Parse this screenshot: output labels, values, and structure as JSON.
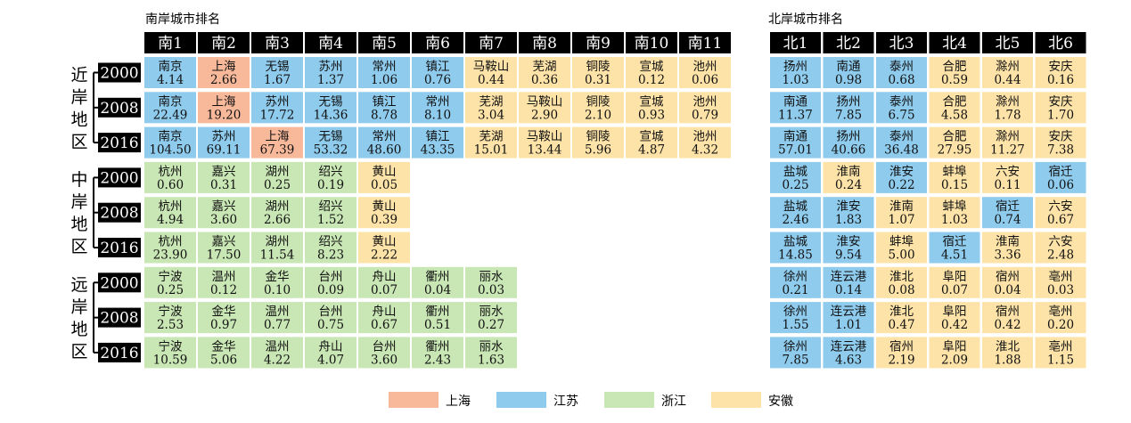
{
  "chart_data": {
    "type": "table",
    "south_title": "南岸城市排名",
    "north_title": "北岸城市排名",
    "south_headers": [
      "南1",
      "南2",
      "南3",
      "南4",
      "南5",
      "南6",
      "南7",
      "南8",
      "南9",
      "南10",
      "南11"
    ],
    "north_headers": [
      "北1",
      "北2",
      "北3",
      "北4",
      "北5",
      "北6"
    ],
    "regions": [
      "近岸地区",
      "中岸地区",
      "远岸地区"
    ],
    "legend": [
      {
        "province": "上海",
        "color": "#f8b99b"
      },
      {
        "province": "江苏",
        "color": "#8ecbed"
      },
      {
        "province": "浙江",
        "color": "#c9e6b5"
      },
      {
        "province": "安徽",
        "color": "#fde3a8"
      }
    ],
    "rows": [
      {
        "region": "近岸地区",
        "year": "2000",
        "south": [
          [
            "南京",
            "4.14",
            "江苏"
          ],
          [
            "上海",
            "2.66",
            "上海"
          ],
          [
            "无锡",
            "1.67",
            "江苏"
          ],
          [
            "苏州",
            "1.37",
            "江苏"
          ],
          [
            "常州",
            "1.06",
            "江苏"
          ],
          [
            "镇江",
            "0.76",
            "江苏"
          ],
          [
            "马鞍山",
            "0.44",
            "安徽"
          ],
          [
            "芜湖",
            "0.36",
            "安徽"
          ],
          [
            "铜陵",
            "0.31",
            "安徽"
          ],
          [
            "宣城",
            "0.12",
            "安徽"
          ],
          [
            "池州",
            "0.06",
            "安徽"
          ]
        ],
        "north": [
          [
            "扬州",
            "1.03",
            "江苏"
          ],
          [
            "南通",
            "0.98",
            "江苏"
          ],
          [
            "泰州",
            "0.68",
            "江苏"
          ],
          [
            "合肥",
            "0.59",
            "安徽"
          ],
          [
            "滁州",
            "0.44",
            "安徽"
          ],
          [
            "安庆",
            "0.16",
            "安徽"
          ]
        ]
      },
      {
        "region": "近岸地区",
        "year": "2008",
        "south": [
          [
            "南京",
            "22.49",
            "江苏"
          ],
          [
            "上海",
            "19.20",
            "上海"
          ],
          [
            "苏州",
            "17.72",
            "江苏"
          ],
          [
            "无锡",
            "14.36",
            "江苏"
          ],
          [
            "镇江",
            "8.78",
            "江苏"
          ],
          [
            "常州",
            "8.10",
            "江苏"
          ],
          [
            "芜湖",
            "3.04",
            "安徽"
          ],
          [
            "马鞍山",
            "2.90",
            "安徽"
          ],
          [
            "铜陵",
            "2.10",
            "安徽"
          ],
          [
            "宣城",
            "0.93",
            "安徽"
          ],
          [
            "池州",
            "0.79",
            "安徽"
          ]
        ],
        "north": [
          [
            "南通",
            "11.37",
            "江苏"
          ],
          [
            "扬州",
            "7.85",
            "江苏"
          ],
          [
            "泰州",
            "6.75",
            "江苏"
          ],
          [
            "合肥",
            "4.58",
            "安徽"
          ],
          [
            "滁州",
            "1.78",
            "安徽"
          ],
          [
            "安庆",
            "1.70",
            "安徽"
          ]
        ]
      },
      {
        "region": "近岸地区",
        "year": "2016",
        "south": [
          [
            "南京",
            "104.50",
            "江苏"
          ],
          [
            "苏州",
            "69.11",
            "江苏"
          ],
          [
            "上海",
            "67.39",
            "上海"
          ],
          [
            "无锡",
            "53.32",
            "江苏"
          ],
          [
            "常州",
            "48.60",
            "江苏"
          ],
          [
            "镇江",
            "43.35",
            "江苏"
          ],
          [
            "芜湖",
            "15.01",
            "安徽"
          ],
          [
            "马鞍山",
            "13.44",
            "安徽"
          ],
          [
            "铜陵",
            "5.96",
            "安徽"
          ],
          [
            "宣城",
            "4.87",
            "安徽"
          ],
          [
            "池州",
            "4.32",
            "安徽"
          ]
        ],
        "north": [
          [
            "南通",
            "57.01",
            "江苏"
          ],
          [
            "扬州",
            "40.66",
            "江苏"
          ],
          [
            "泰州",
            "36.48",
            "江苏"
          ],
          [
            "合肥",
            "27.95",
            "安徽"
          ],
          [
            "滁州",
            "11.27",
            "安徽"
          ],
          [
            "安庆",
            "7.38",
            "安徽"
          ]
        ]
      },
      {
        "region": "中岸地区",
        "year": "2000",
        "south": [
          [
            "杭州",
            "0.60",
            "浙江"
          ],
          [
            "嘉兴",
            "0.31",
            "浙江"
          ],
          [
            "湖州",
            "0.25",
            "浙江"
          ],
          [
            "绍兴",
            "0.19",
            "浙江"
          ],
          [
            "黄山",
            "0.05",
            "安徽"
          ]
        ],
        "north": [
          [
            "盐城",
            "0.25",
            "江苏"
          ],
          [
            "淮南",
            "0.24",
            "安徽"
          ],
          [
            "淮安",
            "0.22",
            "江苏"
          ],
          [
            "蚌埠",
            "0.15",
            "安徽"
          ],
          [
            "六安",
            "0.11",
            "安徽"
          ],
          [
            "宿迁",
            "0.06",
            "江苏"
          ]
        ]
      },
      {
        "region": "中岸地区",
        "year": "2008",
        "south": [
          [
            "杭州",
            "4.94",
            "浙江"
          ],
          [
            "嘉兴",
            "3.60",
            "浙江"
          ],
          [
            "湖州",
            "2.66",
            "浙江"
          ],
          [
            "绍兴",
            "1.52",
            "浙江"
          ],
          [
            "黄山",
            "0.39",
            "安徽"
          ]
        ],
        "north": [
          [
            "盐城",
            "2.46",
            "江苏"
          ],
          [
            "淮安",
            "1.83",
            "江苏"
          ],
          [
            "淮南",
            "1.07",
            "安徽"
          ],
          [
            "蚌埠",
            "1.03",
            "安徽"
          ],
          [
            "宿迁",
            "0.74",
            "江苏"
          ],
          [
            "六安",
            "0.67",
            "安徽"
          ]
        ]
      },
      {
        "region": "中岸地区",
        "year": "2016",
        "south": [
          [
            "杭州",
            "23.90",
            "浙江"
          ],
          [
            "嘉兴",
            "17.50",
            "浙江"
          ],
          [
            "湖州",
            "11.54",
            "浙江"
          ],
          [
            "绍兴",
            "8.23",
            "浙江"
          ],
          [
            "黄山",
            "2.22",
            "安徽"
          ]
        ],
        "north": [
          [
            "盐城",
            "14.85",
            "江苏"
          ],
          [
            "淮安",
            "9.54",
            "江苏"
          ],
          [
            "蚌埠",
            "5.00",
            "安徽"
          ],
          [
            "宿迁",
            "4.51",
            "江苏"
          ],
          [
            "淮南",
            "3.36",
            "安徽"
          ],
          [
            "六安",
            "2.48",
            "安徽"
          ]
        ]
      },
      {
        "region": "远岸地区",
        "year": "2000",
        "south": [
          [
            "宁波",
            "0.25",
            "浙江"
          ],
          [
            "温州",
            "0.12",
            "浙江"
          ],
          [
            "金华",
            "0.10",
            "浙江"
          ],
          [
            "台州",
            "0.09",
            "浙江"
          ],
          [
            "舟山",
            "0.07",
            "浙江"
          ],
          [
            "衢州",
            "0.04",
            "浙江"
          ],
          [
            "丽水",
            "0.03",
            "浙江"
          ]
        ],
        "north": [
          [
            "徐州",
            "0.21",
            "江苏"
          ],
          [
            "连云港",
            "0.14",
            "江苏"
          ],
          [
            "淮北",
            "0.08",
            "安徽"
          ],
          [
            "阜阳",
            "0.07",
            "安徽"
          ],
          [
            "宿州",
            "0.04",
            "安徽"
          ],
          [
            "亳州",
            "0.03",
            "安徽"
          ]
        ]
      },
      {
        "region": "远岸地区",
        "year": "2008",
        "south": [
          [
            "宁波",
            "2.53",
            "浙江"
          ],
          [
            "金华",
            "0.97",
            "浙江"
          ],
          [
            "温州",
            "0.77",
            "浙江"
          ],
          [
            "台州",
            "0.75",
            "浙江"
          ],
          [
            "舟山",
            "0.67",
            "浙江"
          ],
          [
            "衢州",
            "0.51",
            "浙江"
          ],
          [
            "丽水",
            "0.27",
            "浙江"
          ]
        ],
        "north": [
          [
            "徐州",
            "1.55",
            "江苏"
          ],
          [
            "连云港",
            "1.01",
            "江苏"
          ],
          [
            "淮北",
            "0.47",
            "安徽"
          ],
          [
            "阜阳",
            "0.42",
            "安徽"
          ],
          [
            "宿州",
            "0.42",
            "安徽"
          ],
          [
            "亳州",
            "0.20",
            "安徽"
          ]
        ]
      },
      {
        "region": "远岸地区",
        "year": "2016",
        "south": [
          [
            "宁波",
            "10.59",
            "浙江"
          ],
          [
            "金华",
            "5.06",
            "浙江"
          ],
          [
            "温州",
            "4.22",
            "浙江"
          ],
          [
            "舟山",
            "4.07",
            "浙江"
          ],
          [
            "台州",
            "3.60",
            "浙江"
          ],
          [
            "衢州",
            "2.43",
            "浙江"
          ],
          [
            "丽水",
            "1.63",
            "浙江"
          ]
        ],
        "north": [
          [
            "徐州",
            "7.85",
            "江苏"
          ],
          [
            "连云港",
            "4.63",
            "江苏"
          ],
          [
            "宿州",
            "2.19",
            "安徽"
          ],
          [
            "阜阳",
            "2.09",
            "安徽"
          ],
          [
            "淮北",
            "1.88",
            "安徽"
          ],
          [
            "亳州",
            "1.15",
            "安徽"
          ]
        ]
      }
    ]
  }
}
